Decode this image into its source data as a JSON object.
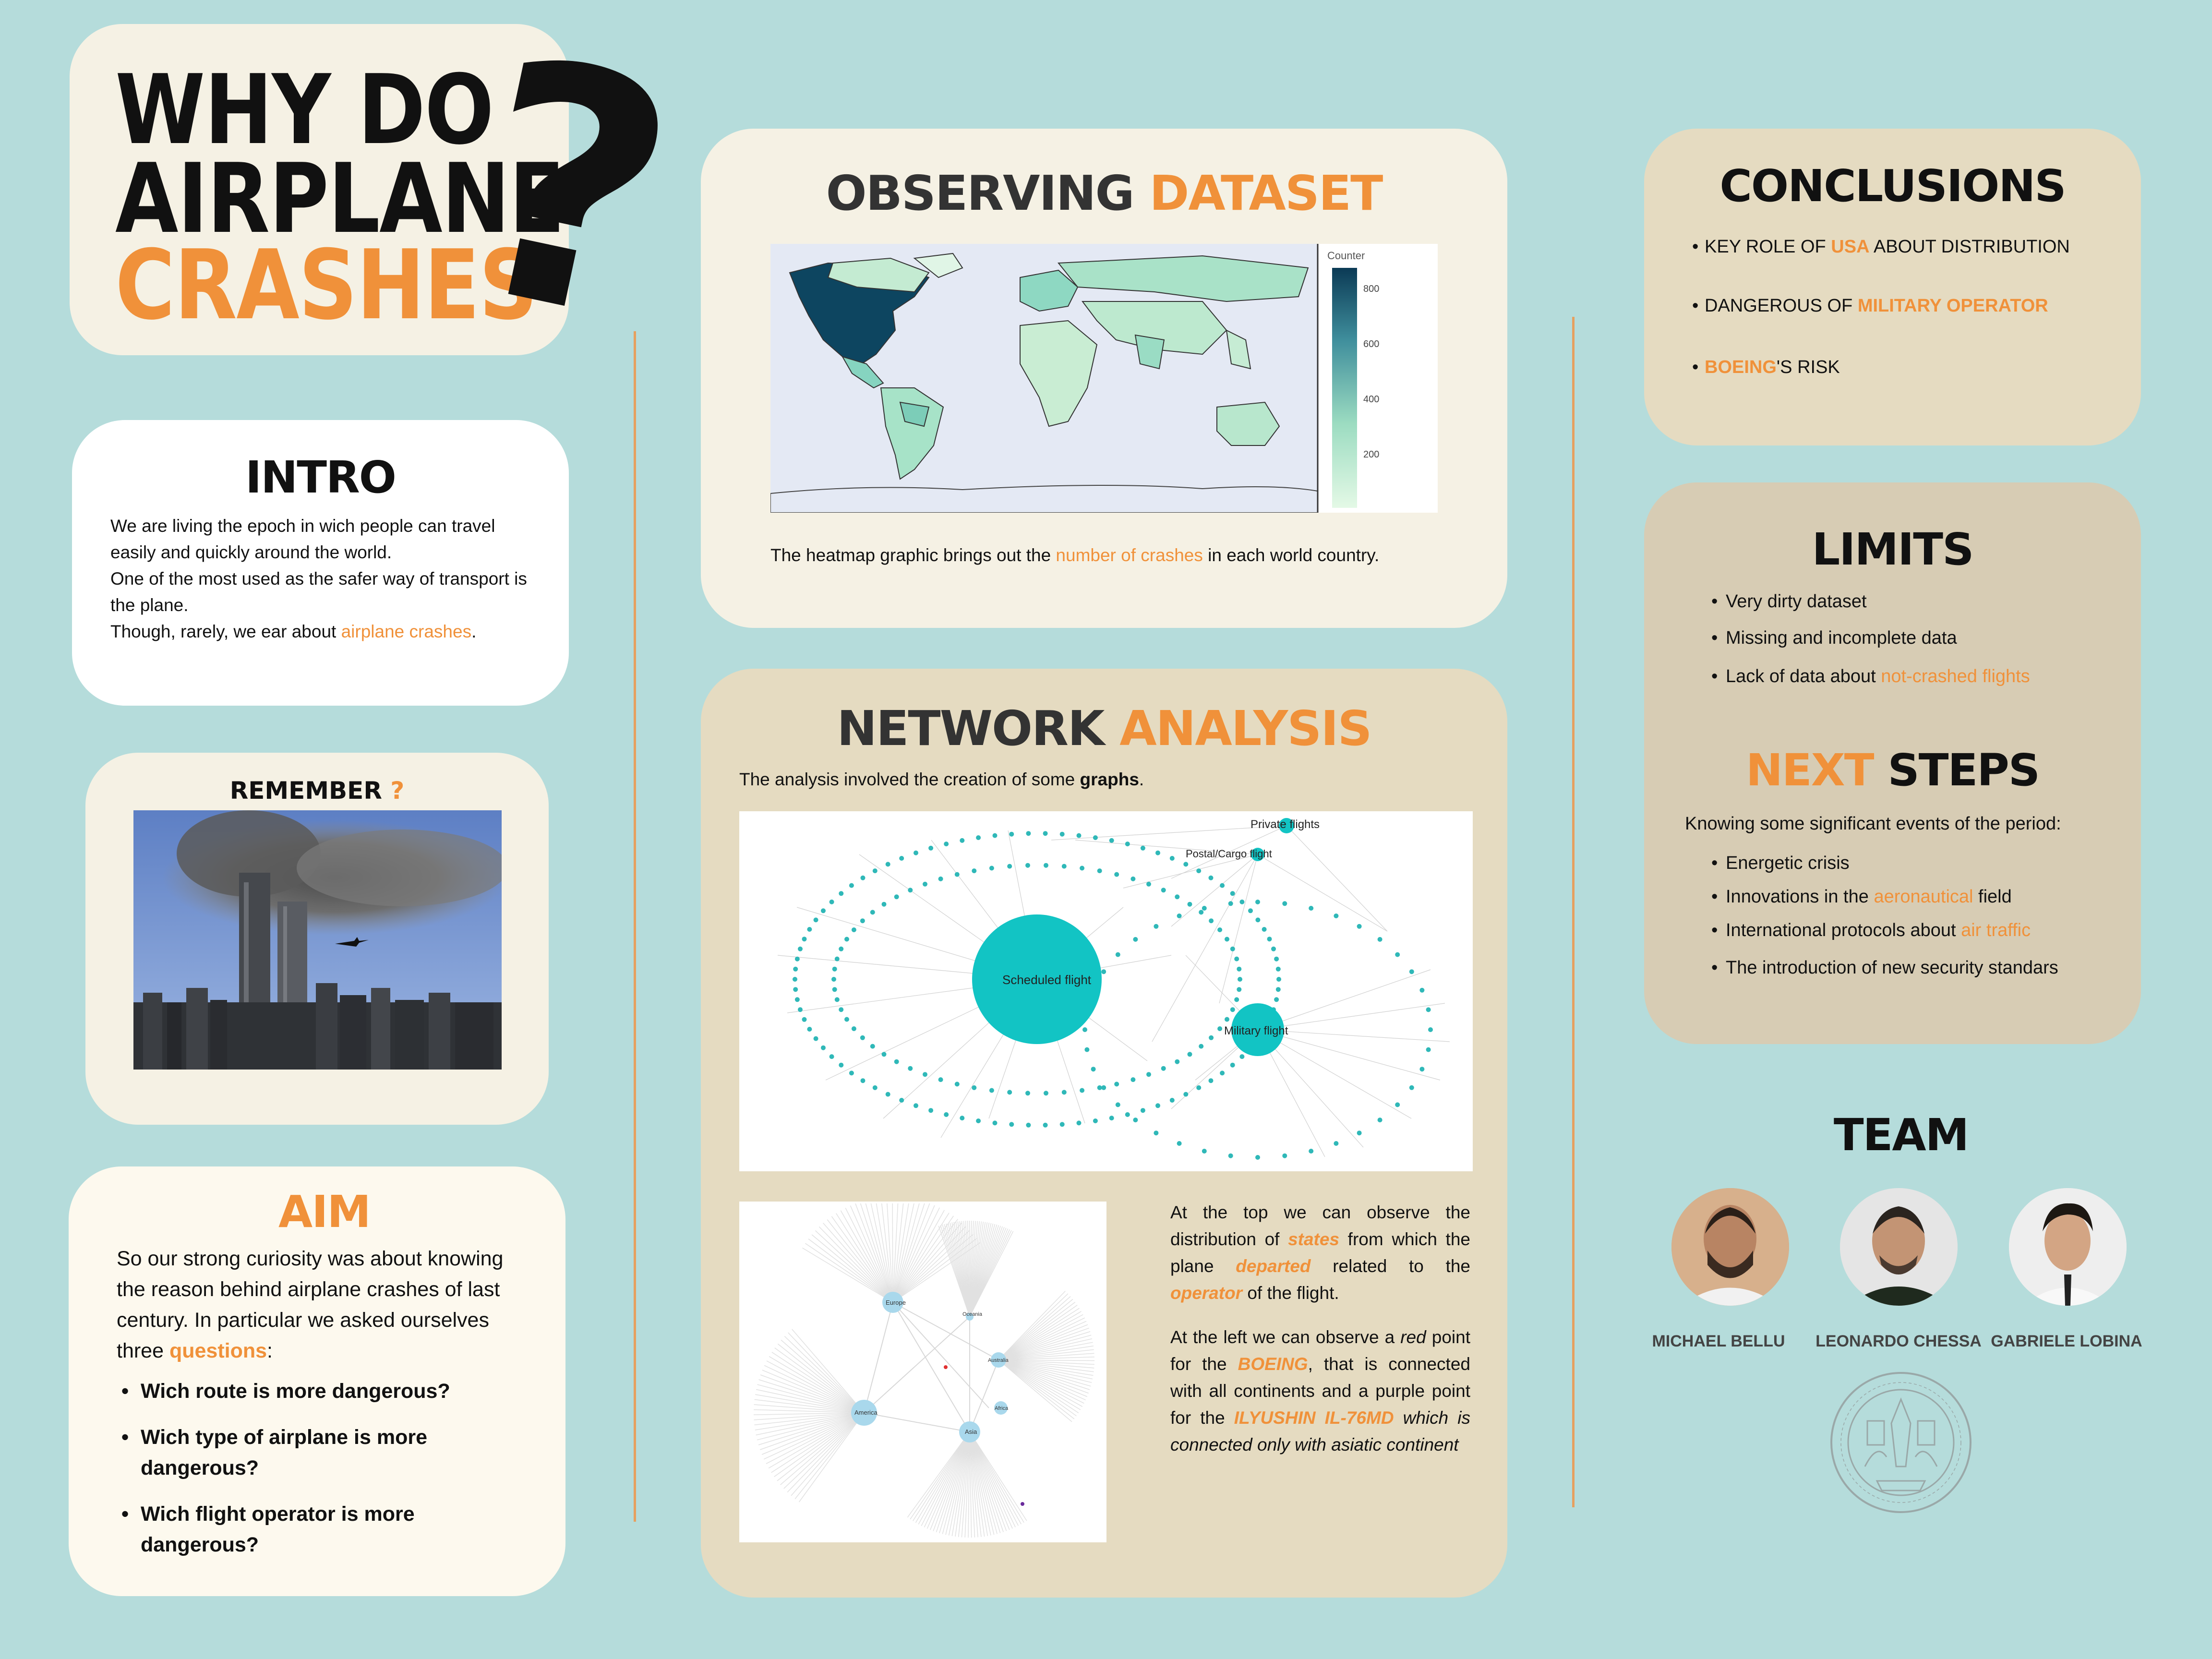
{
  "header": {
    "line1": "WHY DO",
    "line2": "AIRPLANE",
    "line3": "CRASHES",
    "qmark": "?"
  },
  "intro": {
    "title": "INTRO",
    "p1": "We are living the epoch in wich people can travel easily and quickly around the world.",
    "p2": "One of the most used  as the safer way of transport is the plane.",
    "p3_pre": "Though, rarely, we ear about ",
    "p3_hl": "airplane crashes",
    "p3_post": "."
  },
  "remember": {
    "title": "REMEMBER",
    "mark": "?"
  },
  "aim": {
    "title": "AIM",
    "text": "So our strong curiosity was about knowing the reason behind airplane crashes of last century. In particular we asked ourselves three ",
    "hl": "questions",
    "post": ":",
    "questions": [
      "Wich route is more dangerous?",
      "Wich type of airplane is more dangerous?",
      "Wich flight operator is more dangerous?"
    ]
  },
  "observing": {
    "title_a": "OBSERVING",
    "title_b": "DATASET",
    "legend_title": "Counter",
    "legend_ticks": [
      "800",
      "600",
      "400",
      "200"
    ],
    "caption_pre": "The heatmap graphic brings out the ",
    "caption_hl": "number of crashes",
    "caption_post": " in each world country."
  },
  "network": {
    "title_a": "NETWORK",
    "title_b": "ANALYSIS",
    "intro_pre": "The analysis involved the creation of some ",
    "intro_bold": "graphs",
    "intro_post": ".",
    "hubs": [
      "Scheduled flight",
      "Military flight",
      "Private flights",
      "Postal/Cargo flight"
    ],
    "graph2_hubs": [
      "Europe",
      "Oceania",
      "America",
      "Asia",
      "Africa",
      "Australia"
    ],
    "p1": [
      "At the top we can observe the distribution of ",
      "states",
      " from which the plane ",
      "departed",
      " related to the ",
      "operator",
      " of the flight."
    ],
    "p2": [
      "At the left we can observe a ",
      "red",
      " point for the ",
      "BOEING",
      ", that is connected with all continents and a purple point for the ",
      "ILYUSHIN IL-76MD",
      " which is connected only with asiatic continent"
    ]
  },
  "conclusions": {
    "title": "CONCLUSIONS",
    "items": [
      {
        "pre": "KEY ROLE OF ",
        "hl": "USA",
        "post": " ABOUT DISTRIBUTION"
      },
      {
        "pre": "DANGEROUS OF ",
        "hl": "MILITARY OPERATOR",
        "post": ""
      },
      {
        "pre": "",
        "hl": "BOEING",
        "post": "'S RISK"
      }
    ]
  },
  "limits": {
    "title": "LIMITS",
    "items": [
      {
        "pre": "Very dirty dataset",
        "hl": "",
        "post": ""
      },
      {
        "pre": "Missing and incomplete data",
        "hl": "",
        "post": ""
      },
      {
        "pre": "Lack of data about ",
        "hl": "not-crashed flights",
        "post": ""
      }
    ]
  },
  "next": {
    "title_a": "NEXT",
    "title_b": "STEPS",
    "lead": "Knowing some significant events of the period:",
    "items": [
      {
        "pre": "Energetic crisis",
        "hl": "",
        "post": ""
      },
      {
        "pre": "Innovations in the ",
        "hl": "aeronautical",
        "post": " field"
      },
      {
        "pre": "International protocols about ",
        "hl": "air traffic",
        "post": ""
      },
      {
        "pre": " The introduction of new security standars",
        "hl": "",
        "post": ""
      }
    ]
  },
  "team": {
    "title": "TEAM",
    "members": [
      "MICHAEL BELLU",
      "LEONARDO CHESSA",
      "GABRIELE LOBINA"
    ]
  },
  "colors": {
    "accent": "#f0913a",
    "background": "#b5dcdb",
    "hub": "#12c4c4"
  }
}
